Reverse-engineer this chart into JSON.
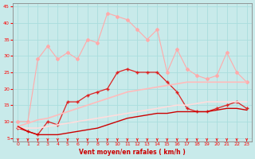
{
  "x": [
    0,
    1,
    2,
    3,
    4,
    5,
    6,
    7,
    8,
    9,
    10,
    11,
    12,
    13,
    14,
    15,
    16,
    17,
    18,
    19,
    20,
    21,
    22,
    23
  ],
  "series": [
    {
      "name": "light_pink_top",
      "color": "#ffaaaa",
      "linewidth": 0.8,
      "marker": "D",
      "markersize": 2.0,
      "values": [
        10,
        10,
        29,
        33,
        29,
        31,
        29,
        35,
        34,
        43,
        42,
        41,
        38,
        35,
        38,
        25,
        32,
        26,
        24,
        23,
        24,
        31,
        25,
        22
      ]
    },
    {
      "name": "medium_red_middle",
      "color": "#dd2222",
      "linewidth": 0.9,
      "marker": "+",
      "markersize": 3.5,
      "values": [
        8,
        7,
        6,
        10,
        9,
        16,
        16,
        18,
        19,
        20,
        25,
        26,
        25,
        25,
        25,
        22,
        19,
        14,
        13,
        13,
        14,
        15,
        16,
        14
      ]
    },
    {
      "name": "salmon_diagonal_upper",
      "color": "#ffbbbb",
      "linewidth": 1.2,
      "marker": null,
      "markersize": 0,
      "values": [
        8.5,
        9.5,
        10.5,
        11,
        12,
        13,
        14,
        15,
        16,
        17,
        18,
        19,
        19.5,
        20,
        20.5,
        21,
        21.5,
        22,
        22,
        22,
        22,
        22,
        22,
        22
      ]
    },
    {
      "name": "pink_diagonal_lower",
      "color": "#ffdddd",
      "linewidth": 1.2,
      "marker": null,
      "markersize": 0,
      "values": [
        8,
        8,
        8,
        8.5,
        9,
        9.5,
        10,
        10.5,
        11,
        11.5,
        12,
        12.5,
        13,
        13.5,
        14,
        14.5,
        15,
        15,
        15.5,
        16,
        16,
        16,
        16,
        16
      ]
    },
    {
      "name": "dark_red_bottom",
      "color": "#cc0000",
      "linewidth": 1.0,
      "marker": null,
      "markersize": 0,
      "values": [
        8.5,
        7,
        6,
        6,
        6,
        6.5,
        7,
        7.5,
        8,
        9,
        10,
        11,
        11.5,
        12,
        12.5,
        12.5,
        13,
        13,
        13,
        13,
        13.5,
        14,
        14,
        13.5
      ]
    }
  ],
  "xlabel": "Vent moyen/en rafales ( km/h )",
  "ylim": [
    4,
    46
  ],
  "xlim": [
    -0.5,
    23.5
  ],
  "yticks": [
    5,
    10,
    15,
    20,
    25,
    30,
    35,
    40,
    45
  ],
  "xticks": [
    0,
    1,
    2,
    3,
    4,
    5,
    6,
    7,
    8,
    9,
    10,
    11,
    12,
    13,
    14,
    15,
    16,
    17,
    18,
    19,
    20,
    21,
    22,
    23
  ],
  "background_color": "#c8eaea",
  "grid_color": "#aadddd",
  "tick_color": "#ff0000",
  "label_color": "#cc0000",
  "spine_color": "#888888"
}
